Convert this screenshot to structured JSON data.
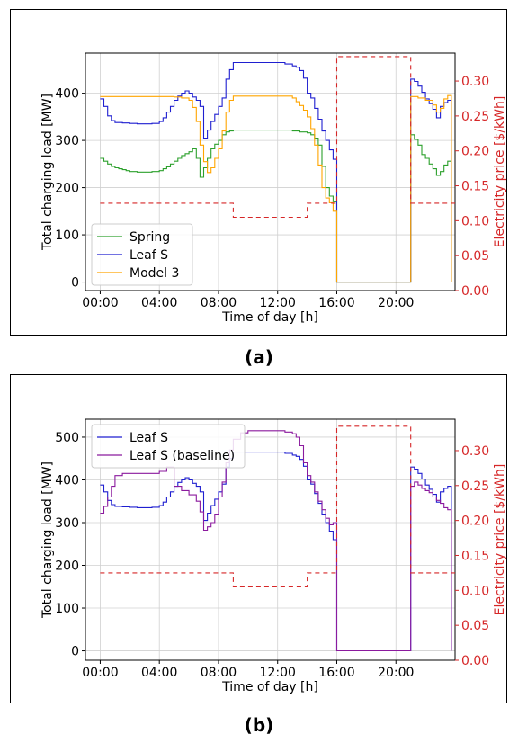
{
  "panels": [
    {
      "label": "(a)"
    },
    {
      "label": "(b)"
    }
  ],
  "colors": {
    "spring": "#2ca02c",
    "leaf": "#1f1fd0",
    "model3": "#ffa500",
    "baseline": "#8b1a9e",
    "price": "#d62728"
  },
  "chart_data": [
    {
      "type": "line",
      "xlabel": "Time of day [h]",
      "ylabel": "Total charging load [MW]",
      "ylabel_right": "Electricity price [$/kWh]",
      "xlim": [
        -1,
        24
      ],
      "ylim": [
        -18,
        485
      ],
      "ylim_right": [
        0,
        0.34
      ],
      "x_ticks": [
        "00:00",
        "04:00",
        "08:00",
        "12:00",
        "16:00",
        "20:00"
      ],
      "y_ticks": [
        "0",
        "100",
        "200",
        "300",
        "400"
      ],
      "y_ticks_right": [
        "0.00",
        "0.05",
        "0.10",
        "0.15",
        "0.20",
        "0.25",
        "0.30"
      ],
      "grid": true,
      "legend_position": "lower-left",
      "series": [
        {
          "name": "Spring",
          "key": "spring",
          "x": [
            0,
            0.25,
            0.5,
            0.75,
            1,
            1.25,
            1.5,
            1.75,
            2,
            2.5,
            3,
            3.5,
            4,
            4.25,
            4.5,
            4.75,
            5,
            5.25,
            5.5,
            5.75,
            6,
            6.25,
            6.5,
            6.75,
            7,
            7.25,
            7.5,
            7.75,
            8,
            8.25,
            8.5,
            8.75,
            9,
            10,
            11,
            12,
            13,
            13.5,
            14,
            14.25,
            14.5,
            14.75,
            15,
            15.25,
            15.5,
            15.75,
            16,
            16.001,
            21,
            21.25,
            21.5,
            21.75,
            22,
            22.25,
            22.5,
            22.75,
            23,
            23.25,
            23.5,
            23.75
          ],
          "y": [
            262,
            256,
            250,
            245,
            242,
            240,
            238,
            236,
            234,
            233,
            233,
            234,
            236,
            240,
            244,
            250,
            256,
            262,
            268,
            272,
            276,
            282,
            262,
            222,
            242,
            262,
            282,
            292,
            300,
            312,
            318,
            320,
            322,
            322,
            322,
            322,
            320,
            318,
            316,
            312,
            305,
            290,
            245,
            200,
            182,
            170,
            168,
            0,
            312,
            302,
            290,
            270,
            262,
            250,
            240,
            226,
            234,
            248,
            256,
            0
          ]
        },
        {
          "name": "Leaf S",
          "key": "leaf",
          "x": [
            0,
            0.25,
            0.5,
            0.75,
            1,
            1.5,
            2,
            2.5,
            3,
            3.5,
            4,
            4.25,
            4.5,
            4.75,
            5,
            5.25,
            5.5,
            5.75,
            6,
            6.25,
            6.5,
            6.75,
            7,
            7.25,
            7.5,
            7.75,
            8,
            8.25,
            8.5,
            8.75,
            9,
            10,
            11,
            12,
            12.5,
            13,
            13.25,
            13.5,
            13.75,
            14,
            14.25,
            14.5,
            14.75,
            15,
            15.25,
            15.5,
            15.75,
            16,
            16.001,
            21,
            21.25,
            21.5,
            21.75,
            22,
            22.25,
            22.5,
            22.75,
            23,
            23.25,
            23.5,
            23.75
          ],
          "y": [
            388,
            372,
            352,
            342,
            338,
            337,
            336,
            335,
            335,
            336,
            340,
            348,
            360,
            372,
            385,
            394,
            400,
            405,
            400,
            392,
            385,
            372,
            305,
            322,
            340,
            355,
            372,
            390,
            430,
            450,
            465,
            465,
            465,
            465,
            462,
            458,
            455,
            448,
            432,
            400,
            390,
            368,
            345,
            320,
            300,
            280,
            260,
            122,
            0,
            430,
            425,
            415,
            402,
            388,
            378,
            366,
            348,
            372,
            380,
            385,
            0
          ]
        },
        {
          "name": "Model 3",
          "key": "model3",
          "x": [
            0,
            1,
            2,
            3,
            4,
            5,
            5.5,
            6,
            6.25,
            6.5,
            6.75,
            7,
            7.25,
            7.5,
            7.75,
            8,
            8.25,
            8.5,
            8.75,
            9,
            10,
            11,
            12,
            13,
            13.25,
            13.5,
            13.75,
            14,
            14.25,
            14.5,
            14.75,
            15,
            15.25,
            15.5,
            15.75,
            16,
            16.001,
            21,
            21.5,
            22,
            22.5,
            22.75,
            23,
            23.25,
            23.5,
            23.75
          ],
          "y": [
            393,
            393,
            393,
            393,
            393,
            392,
            390,
            385,
            370,
            340,
            290,
            255,
            232,
            242,
            262,
            282,
            320,
            360,
            385,
            394,
            394,
            394,
            394,
            390,
            382,
            374,
            364,
            350,
            325,
            290,
            248,
            200,
            178,
            168,
            150,
            130,
            0,
            393,
            390,
            385,
            375,
            360,
            368,
            388,
            395,
            0
          ]
        },
        {
          "name": "",
          "key": "price",
          "axis": "right",
          "dashed": true,
          "x": [
            0,
            9,
            9,
            14,
            14,
            16,
            16,
            21,
            21,
            24
          ],
          "y": [
            0.125,
            0.125,
            0.105,
            0.105,
            0.125,
            0.125,
            0.335,
            0.335,
            0.125,
            0.125
          ]
        }
      ]
    },
    {
      "type": "line",
      "xlabel": "Time of day [h]",
      "ylabel": "Total charging load [MW]",
      "ylabel_right": "Electricity price [$/kWh]",
      "xlim": [
        -1,
        24
      ],
      "ylim": [
        -22,
        542
      ],
      "ylim_right": [
        0,
        0.345
      ],
      "x_ticks": [
        "00:00",
        "04:00",
        "08:00",
        "12:00",
        "16:00",
        "20:00"
      ],
      "y_ticks": [
        "0",
        "100",
        "200",
        "300",
        "400",
        "500"
      ],
      "y_ticks_right": [
        "0.00",
        "0.05",
        "0.10",
        "0.15",
        "0.20",
        "0.25",
        "0.30"
      ],
      "grid": true,
      "legend_position": "upper-left",
      "series": [
        {
          "name": "Leaf S",
          "key": "leaf",
          "x": [
            0,
            0.25,
            0.5,
            0.75,
            1,
            1.5,
            2,
            2.5,
            3,
            3.5,
            4,
            4.25,
            4.5,
            4.75,
            5,
            5.25,
            5.5,
            5.75,
            6,
            6.25,
            6.5,
            6.75,
            7,
            7.25,
            7.5,
            7.75,
            8,
            8.25,
            8.5,
            8.75,
            9,
            10,
            11,
            12,
            12.5,
            13,
            13.25,
            13.5,
            13.75,
            14,
            14.25,
            14.5,
            14.75,
            15,
            15.25,
            15.5,
            15.75,
            16,
            16.001,
            21,
            21.25,
            21.5,
            21.75,
            22,
            22.25,
            22.5,
            22.75,
            23,
            23.25,
            23.5,
            23.75
          ],
          "y": [
            388,
            372,
            352,
            342,
            338,
            337,
            336,
            335,
            335,
            336,
            340,
            348,
            360,
            372,
            385,
            394,
            400,
            405,
            400,
            392,
            385,
            372,
            305,
            322,
            340,
            355,
            372,
            390,
            430,
            450,
            465,
            465,
            465,
            465,
            462,
            458,
            455,
            448,
            432,
            400,
            390,
            368,
            345,
            320,
            300,
            280,
            260,
            254,
            0,
            430,
            425,
            415,
            402,
            388,
            378,
            366,
            348,
            372,
            380,
            385,
            0
          ]
        },
        {
          "name": "Leaf S (baseline)",
          "key": "baseline",
          "x": [
            0,
            0.25,
            0.5,
            0.75,
            1,
            1.5,
            2,
            3,
            4,
            4.5,
            5,
            5.5,
            6,
            6.5,
            6.75,
            7,
            7.25,
            7.5,
            7.75,
            8,
            8.25,
            8.5,
            8.75,
            9,
            9.5,
            10,
            11,
            12,
            12.5,
            13,
            13.25,
            13.5,
            13.75,
            14,
            14.25,
            14.5,
            14.75,
            15,
            15.25,
            15.5,
            15.75,
            16,
            16.001,
            21,
            21.25,
            21.5,
            21.75,
            22,
            22.25,
            22.5,
            22.75,
            23,
            23.25,
            23.5,
            23.75
          ],
          "y": [
            322,
            338,
            360,
            385,
            410,
            415,
            415,
            415,
            420,
            430,
            385,
            375,
            365,
            350,
            325,
            282,
            290,
            300,
            320,
            360,
            395,
            440,
            470,
            495,
            510,
            515,
            515,
            515,
            512,
            508,
            500,
            480,
            440,
            410,
            395,
            372,
            350,
            330,
            310,
            295,
            300,
            0,
            0,
            385,
            395,
            388,
            380,
            375,
            370,
            360,
            352,
            345,
            335,
            330,
            0
          ]
        },
        {
          "name": "",
          "key": "price",
          "axis": "right",
          "dashed": true,
          "x": [
            0,
            9,
            9,
            14,
            14,
            16,
            16,
            21,
            21,
            24
          ],
          "y": [
            0.125,
            0.125,
            0.105,
            0.105,
            0.125,
            0.125,
            0.335,
            0.335,
            0.125,
            0.125
          ]
        }
      ]
    }
  ]
}
